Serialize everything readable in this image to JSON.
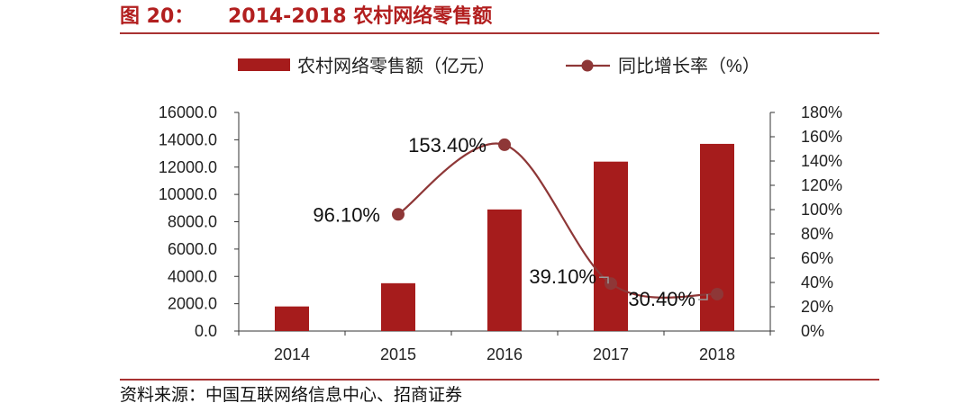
{
  "figure": {
    "label": "图 20：",
    "title": "2014-2018 农村网络零售额",
    "source": "资料来源：中国互联网络信息中心、招商证券"
  },
  "colors": {
    "bar": "#a61c1c",
    "line": "#8e3737",
    "axis": "#333333",
    "title": "#b21f1f",
    "rule": "#a83232"
  },
  "chart_data": {
    "type": "bar",
    "categories": [
      "2014",
      "2015",
      "2016",
      "2017",
      "2018"
    ],
    "series": [
      {
        "name": "农村网络零售额（亿元）",
        "type": "bar",
        "axis": "left",
        "values": [
          1800,
          3500,
          8900,
          12400,
          13700
        ]
      },
      {
        "name": "同比增长率（%）",
        "type": "line",
        "axis": "right",
        "values": [
          null,
          96.1,
          153.4,
          39.1,
          30.4
        ],
        "labels": [
          "",
          "96.10%",
          "153.40%",
          "39.10%",
          "30.40%"
        ]
      }
    ],
    "y_left": {
      "range": [
        0,
        16000
      ],
      "ticks": [
        "0.0",
        "2000.0",
        "4000.0",
        "6000.0",
        "8000.0",
        "10000.0",
        "12000.0",
        "14000.0",
        "16000.0"
      ]
    },
    "y_right": {
      "range": [
        0,
        180
      ],
      "ticks": [
        "0%",
        "20%",
        "40%",
        "60%",
        "80%",
        "100%",
        "120%",
        "140%",
        "160%",
        "180%"
      ]
    },
    "legend_position": "top-center",
    "grid": false
  }
}
